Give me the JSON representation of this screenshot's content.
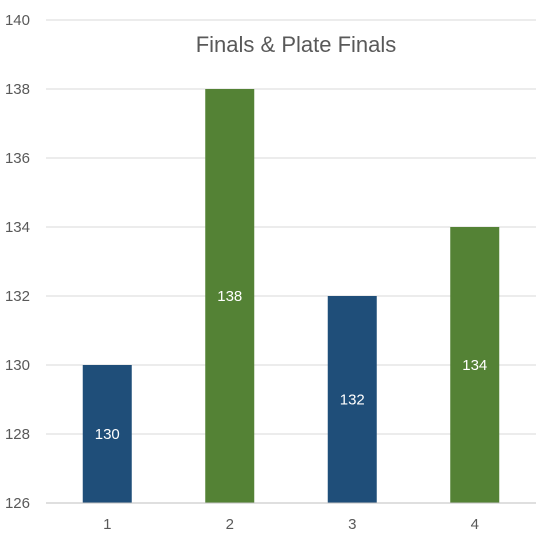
{
  "chart_data": {
    "type": "bar",
    "title": "Finals & Plate Finals",
    "categories": [
      "1",
      "2",
      "3",
      "4"
    ],
    "values": [
      130,
      138,
      132,
      134
    ],
    "data_labels": [
      "130",
      "138",
      "132",
      "134"
    ],
    "bar_colors": [
      "#1f4e79",
      "#548235",
      "#1f4e79",
      "#548235"
    ],
    "xlabel": "",
    "ylabel": "",
    "ylim": [
      126,
      140
    ],
    "yticks": [
      126,
      128,
      130,
      132,
      134,
      136,
      138,
      140
    ],
    "grid": true,
    "legend": "none"
  }
}
